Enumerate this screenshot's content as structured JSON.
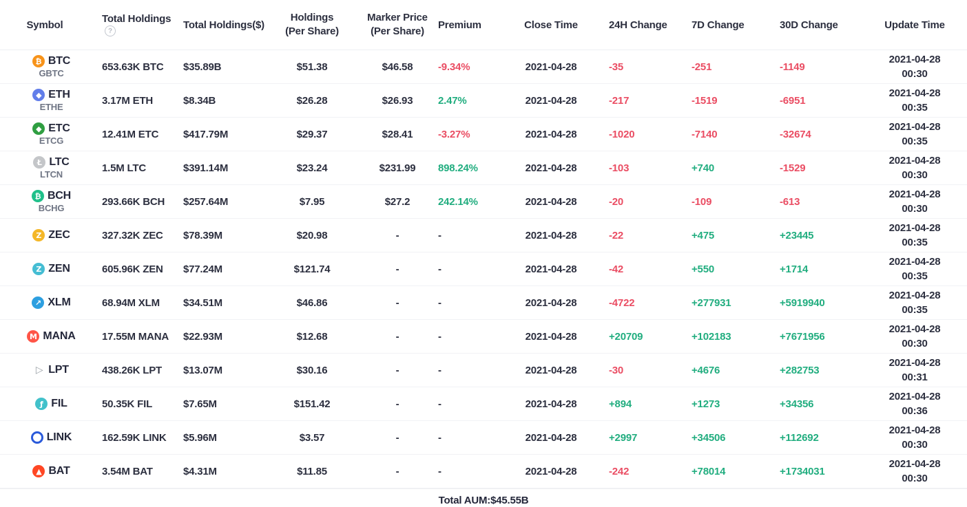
{
  "colors": {
    "positive": "#21AD7F",
    "negative": "#EA4D63",
    "text_dark": "#2c2f3f",
    "sub_ticker_gray": "#6f7584"
  },
  "table": {
    "columns": [
      {
        "label": "Symbol"
      },
      {
        "label": "Total Holdings",
        "help_icon": "question-circle"
      },
      {
        "label": "Total Holdings($)"
      },
      {
        "label": "Holdings",
        "label2": "(Per Share)"
      },
      {
        "label": "Marker Price",
        "label2": "(Per Share)"
      },
      {
        "label": "Premium"
      },
      {
        "label": "Close Time"
      },
      {
        "label": "24H Change"
      },
      {
        "label": "7D Change"
      },
      {
        "label": "30D Change"
      },
      {
        "label": "Update Time"
      }
    ],
    "rows": [
      {
        "symbol": "BTC",
        "sub": "GBTC",
        "icon": {
          "name": "btc-icon",
          "style": "circle",
          "bg": "#F7931A",
          "fg": "#ffffff",
          "glyph": "₿"
        },
        "total_holdings": "653.63K BTC",
        "total_holdings_usd": "$35.89B",
        "holdings_per_share": "$51.38",
        "marker_price": "$46.58",
        "premium": "-9.34%",
        "close_time": "2021-04-28",
        "change_24h": "-35",
        "change_7d": "-251",
        "change_30d": "-1149",
        "update_date": "2021-04-28",
        "update_time": "00:30"
      },
      {
        "symbol": "ETH",
        "sub": "ETHE",
        "icon": {
          "name": "eth-icon",
          "style": "circle",
          "bg": "#627EEA",
          "fg": "#ffffff",
          "glyph": "◆"
        },
        "total_holdings": "3.17M ETH",
        "total_holdings_usd": "$8.34B",
        "holdings_per_share": "$26.28",
        "marker_price": "$26.93",
        "premium": "2.47%",
        "close_time": "2021-04-28",
        "change_24h": "-217",
        "change_7d": "-1519",
        "change_30d": "-6951",
        "update_date": "2021-04-28",
        "update_time": "00:35"
      },
      {
        "symbol": "ETC",
        "sub": "ETCG",
        "icon": {
          "name": "etc-icon",
          "style": "circle",
          "bg": "#2F9E41",
          "fg": "#ffffff",
          "glyph": "◆"
        },
        "total_holdings": "12.41M ETC",
        "total_holdings_usd": "$417.79M",
        "holdings_per_share": "$29.37",
        "marker_price": "$28.41",
        "premium": "-3.27%",
        "close_time": "2021-04-28",
        "change_24h": "-1020",
        "change_7d": "-7140",
        "change_30d": "-32674",
        "update_date": "2021-04-28",
        "update_time": "00:35"
      },
      {
        "symbol": "LTC",
        "sub": "LTCN",
        "icon": {
          "name": "ltc-icon",
          "style": "circle",
          "bg": "#C4C6C9",
          "fg": "#ffffff",
          "glyph": "Ł"
        },
        "total_holdings": "1.5M LTC",
        "total_holdings_usd": "$391.14M",
        "holdings_per_share": "$23.24",
        "marker_price": "$231.99",
        "premium": "898.24%",
        "close_time": "2021-04-28",
        "change_24h": "-103",
        "change_7d": "+740",
        "change_30d": "-1529",
        "update_date": "2021-04-28",
        "update_time": "00:30"
      },
      {
        "symbol": "BCH",
        "sub": "BCHG",
        "icon": {
          "name": "bch-icon",
          "style": "circle",
          "bg": "#1FC08A",
          "fg": "#ffffff",
          "glyph": "₿"
        },
        "total_holdings": "293.66K BCH",
        "total_holdings_usd": "$257.64M",
        "holdings_per_share": "$7.95",
        "marker_price": "$27.2",
        "premium": "242.14%",
        "close_time": "2021-04-28",
        "change_24h": "-20",
        "change_7d": "-109",
        "change_30d": "-613",
        "update_date": "2021-04-28",
        "update_time": "00:30"
      },
      {
        "symbol": "ZEC",
        "sub": "",
        "icon": {
          "name": "zec-icon",
          "style": "circle",
          "bg": "#F4B728",
          "fg": "#ffffff",
          "glyph": "Z"
        },
        "total_holdings": "327.32K ZEC",
        "total_holdings_usd": "$78.39M",
        "holdings_per_share": "$20.98",
        "marker_price": "-",
        "premium": "-",
        "close_time": "2021-04-28",
        "change_24h": "-22",
        "change_7d": "+475",
        "change_30d": "+23445",
        "update_date": "2021-04-28",
        "update_time": "00:35"
      },
      {
        "symbol": "ZEN",
        "sub": "",
        "icon": {
          "name": "zen-icon",
          "style": "circle",
          "bg": "#45BDD3",
          "fg": "#ffffff",
          "glyph": "Z"
        },
        "total_holdings": "605.96K ZEN",
        "total_holdings_usd": "$77.24M",
        "holdings_per_share": "$121.74",
        "marker_price": "-",
        "premium": "-",
        "close_time": "2021-04-28",
        "change_24h": "-42",
        "change_7d": "+550",
        "change_30d": "+1714",
        "update_date": "2021-04-28",
        "update_time": "00:35"
      },
      {
        "symbol": "XLM",
        "sub": "",
        "icon": {
          "name": "xlm-icon",
          "style": "circle",
          "bg": "#2D9FE0",
          "fg": "#ffffff",
          "glyph": "↗"
        },
        "total_holdings": "68.94M XLM",
        "total_holdings_usd": "$34.51M",
        "holdings_per_share": "$46.86",
        "marker_price": "-",
        "premium": "-",
        "close_time": "2021-04-28",
        "change_24h": "-4722",
        "change_7d": "+277931",
        "change_30d": "+5919940",
        "update_date": "2021-04-28",
        "update_time": "00:35"
      },
      {
        "symbol": "MANA",
        "sub": "",
        "icon": {
          "name": "mana-icon",
          "style": "circle",
          "bg": "#FF5547",
          "fg": "#ffffff",
          "glyph": "M"
        },
        "total_holdings": "17.55M MANA",
        "total_holdings_usd": "$22.93M",
        "holdings_per_share": "$12.68",
        "marker_price": "-",
        "premium": "-",
        "close_time": "2021-04-28",
        "change_24h": "+20709",
        "change_7d": "+102183",
        "change_30d": "+7671956",
        "update_date": "2021-04-28",
        "update_time": "00:30"
      },
      {
        "symbol": "LPT",
        "sub": "",
        "icon": {
          "name": "lpt-icon",
          "style": "plain",
          "bg": "",
          "fg": "#9aa0a6",
          "glyph": "▷"
        },
        "total_holdings": "438.26K LPT",
        "total_holdings_usd": "$13.07M",
        "holdings_per_share": "$30.16",
        "marker_price": "-",
        "premium": "-",
        "close_time": "2021-04-28",
        "change_24h": "-30",
        "change_7d": "+4676",
        "change_30d": "+282753",
        "update_date": "2021-04-28",
        "update_time": "00:31"
      },
      {
        "symbol": "FIL",
        "sub": "",
        "icon": {
          "name": "fil-icon",
          "style": "circle",
          "bg": "#42C1CA",
          "fg": "#ffffff",
          "glyph": "ƒ"
        },
        "total_holdings": "50.35K FIL",
        "total_holdings_usd": "$7.65M",
        "holdings_per_share": "$151.42",
        "marker_price": "-",
        "premium": "-",
        "close_time": "2021-04-28",
        "change_24h": "+894",
        "change_7d": "+1273",
        "change_30d": "+34356",
        "update_date": "2021-04-28",
        "update_time": "00:36"
      },
      {
        "symbol": "LINK",
        "sub": "",
        "icon": {
          "name": "link-icon",
          "style": "ring",
          "bg": "#ffffff",
          "fg": "#2A5ADA",
          "ring": "#2A5ADA",
          "glyph": ""
        },
        "total_holdings": "162.59K LINK",
        "total_holdings_usd": "$5.96M",
        "holdings_per_share": "$3.57",
        "marker_price": "-",
        "premium": "-",
        "close_time": "2021-04-28",
        "change_24h": "+2997",
        "change_7d": "+34506",
        "change_30d": "+112692",
        "update_date": "2021-04-28",
        "update_time": "00:30"
      },
      {
        "symbol": "BAT",
        "sub": "",
        "icon": {
          "name": "bat-icon",
          "style": "circle",
          "bg": "#FF4724",
          "fg": "#ffffff",
          "glyph": "▲"
        },
        "total_holdings": "3.54M BAT",
        "total_holdings_usd": "$4.31M",
        "holdings_per_share": "$11.85",
        "marker_price": "-",
        "premium": "-",
        "close_time": "2021-04-28",
        "change_24h": "-242",
        "change_7d": "+78014",
        "change_30d": "+1734031",
        "update_date": "2021-04-28",
        "update_time": "00:30"
      }
    ],
    "footer": {
      "total_aum": "Total AUM:$45.55B"
    }
  }
}
